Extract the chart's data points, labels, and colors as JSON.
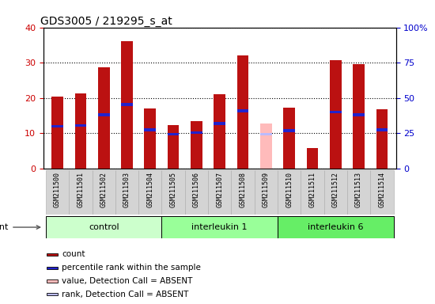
{
  "title": "GDS3005 / 219295_s_at",
  "samples": [
    "GSM211500",
    "GSM211501",
    "GSM211502",
    "GSM211503",
    "GSM211504",
    "GSM211505",
    "GSM211506",
    "GSM211507",
    "GSM211508",
    "GSM211509",
    "GSM211510",
    "GSM211511",
    "GSM211512",
    "GSM211513",
    "GSM211514"
  ],
  "count_values": [
    20.5,
    21.2,
    28.8,
    36.1,
    17.0,
    12.3,
    13.5,
    21.0,
    32.0,
    null,
    17.2,
    5.8,
    30.8,
    29.5,
    16.8
  ],
  "rank_values": [
    30.0,
    30.5,
    38.2,
    45.5,
    27.5,
    24.5,
    25.5,
    32.0,
    41.0,
    null,
    27.0,
    null,
    40.0,
    38.0,
    27.5
  ],
  "absent_count": [
    null,
    null,
    null,
    null,
    null,
    null,
    null,
    null,
    null,
    12.8,
    null,
    null,
    null,
    null,
    null
  ],
  "absent_rank": [
    null,
    null,
    null,
    null,
    null,
    null,
    null,
    null,
    null,
    24.5,
    null,
    null,
    null,
    null,
    null
  ],
  "group_defs": [
    [
      0,
      5,
      "#ccffcc",
      "control"
    ],
    [
      5,
      10,
      "#99ff99",
      "interleukin 1"
    ],
    [
      10,
      15,
      "#66ee66",
      "interleukin 6"
    ]
  ],
  "ylim_left": [
    0,
    40
  ],
  "ylim_right": [
    0,
    100
  ],
  "yticks_left": [
    0,
    10,
    20,
    30,
    40
  ],
  "yticks_right": [
    0,
    25,
    50,
    75,
    100
  ],
  "yticklabels_right": [
    "0",
    "25",
    "50",
    "75",
    "100%"
  ],
  "bar_color_count": "#bb1111",
  "bar_color_rank": "#2222cc",
  "bar_color_absent_count": "#ffbbbb",
  "bar_color_absent_rank": "#bbbbff",
  "bar_width": 0.5,
  "rank_bar_width": 0.5,
  "rank_bar_height": 0.8,
  "xtick_bg": "#d0d0d0",
  "left_color": "#cc0000",
  "right_color": "#0000cc"
}
